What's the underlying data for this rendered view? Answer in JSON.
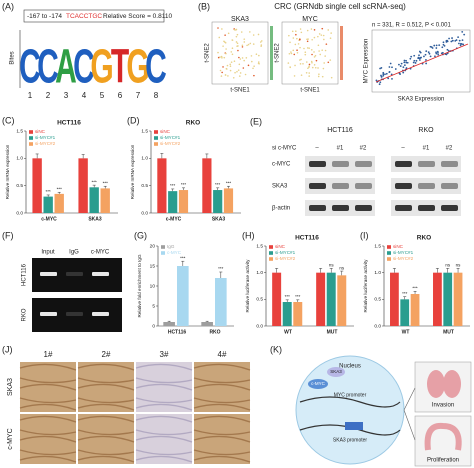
{
  "panel_a": {
    "label": "(A)",
    "site": "-167 to -174",
    "sequence": "TCACCTGC",
    "score": "Relative Score = 0.8110",
    "y_label": "Bites",
    "logo": [
      "C",
      "C",
      "A",
      "C",
      "G",
      "T",
      "G",
      "C"
    ],
    "logo_colors": [
      "#1f5fbf",
      "#1f5fbf",
      "#2e9e44",
      "#1f5fbf",
      "#f0a020",
      "#d62728",
      "#f0a020",
      "#1f5fbf"
    ],
    "positions": [
      1,
      2,
      3,
      4,
      5,
      6,
      7,
      8
    ]
  },
  "panel_b": {
    "label": "(B)",
    "title": "CRC (GRNdb single cell scRNA-seq)",
    "maps": [
      "SKA3",
      "MYC"
    ],
    "x_label": "t-SNE1",
    "y_label": "t-SNE2",
    "stats": "n = 331, R = 0.512, P < 0.001",
    "scatter_x_label": "SKA3 Expression",
    "scatter_y_label": "MYC Expression"
  },
  "panel_c": {
    "label": "(C)",
    "type": "bar",
    "title": "HCT116",
    "y_label": "Relative mRNA expression",
    "categories": [
      "c-MYC",
      "SKA3"
    ],
    "series": [
      {
        "name": "siNC",
        "color": "#e8413c",
        "values": [
          1.0,
          1.0
        ],
        "errors": [
          0.08,
          0.07
        ]
      },
      {
        "name": "si-MYC#1",
        "color": "#2a9d8f",
        "values": [
          0.3,
          0.47
        ],
        "errors": [
          0.03,
          0.04
        ],
        "significance": [
          "***",
          "***"
        ]
      },
      {
        "name": "si-MYC#2",
        "color": "#f4a261",
        "values": [
          0.35,
          0.45
        ],
        "errors": [
          0.03,
          0.04
        ],
        "significance": [
          "***",
          "***"
        ]
      }
    ],
    "ylim": [
      0,
      1.5
    ],
    "yticks": [
      {
        "value": 0,
        "label": "0.0"
      },
      0.5,
      {
        "value": 1,
        "label": "1.0"
      },
      1.5
    ]
  },
  "panel_d": {
    "label": "(D)",
    "type": "bar",
    "title": "RKO",
    "y_label": "Relative mRNA expression",
    "categories": [
      "c-MYC",
      "SKA3"
    ],
    "series": [
      {
        "name": "siNC",
        "color": "#e8413c",
        "values": [
          1.0,
          1.0
        ],
        "errors": [
          0.09,
          0.08
        ]
      },
      {
        "name": "si-MYC#1",
        "color": "#2a9d8f",
        "values": [
          0.4,
          0.42
        ],
        "errors": [
          0.04,
          0.04
        ],
        "significance": [
          "***",
          "***"
        ]
      },
      {
        "name": "si-MYC#2",
        "color": "#f4a261",
        "values": [
          0.42,
          0.45
        ],
        "errors": [
          0.04,
          0.04
        ],
        "significance": [
          "***",
          "***"
        ]
      }
    ],
    "ylim": [
      0,
      1.5
    ],
    "yticks": [
      {
        "value": 0,
        "label": "0.0"
      },
      0.5,
      {
        "value": 1,
        "label": "1.0"
      },
      1.5
    ]
  },
  "panel_e": {
    "label": "(E)",
    "treatment": "si c-MYC",
    "cell_lines": [
      "HCT116",
      "RKO"
    ],
    "lanes": [
      "–",
      "#1",
      "#2"
    ],
    "proteins": [
      "c-MYC",
      "SKA3",
      "β-actin"
    ]
  },
  "panel_f": {
    "label": "(F)",
    "lanes": [
      "Input",
      "IgG",
      "c-MYC"
    ],
    "cell_lines": [
      "HCT116",
      "RKO"
    ]
  },
  "panel_g": {
    "label": "(G)",
    "type": "bar",
    "y_label": "Relative fold enrichment to IgG",
    "categories": [
      "HCT116",
      "RKO"
    ],
    "series": [
      {
        "name": "IgG",
        "color": "#9e9e9e",
        "values": [
          1,
          1
        ],
        "errors": [
          0.2,
          0.2
        ]
      },
      {
        "name": "c-MYC",
        "color": "#a8d8f0",
        "values": [
          15,
          12
        ],
        "errors": [
          1.2,
          1.5
        ],
        "significance": [
          "***",
          "***"
        ]
      }
    ],
    "ylim": [
      0,
      20
    ],
    "yticks": [
      0,
      5,
      10,
      15,
      20
    ]
  },
  "panel_h": {
    "label": "(H)",
    "type": "bar",
    "title": "HCT116",
    "y_label": "Relative luciferase activity",
    "categories": [
      "WT",
      "MUT"
    ],
    "series": [
      {
        "name": "siNC",
        "color": "#e8413c",
        "values": [
          1.0,
          1.0
        ],
        "errors": [
          0.08,
          0.08
        ]
      },
      {
        "name": "si-MYC#1",
        "color": "#2a9d8f",
        "values": [
          0.45,
          1.0
        ],
        "errors": [
          0.04,
          0.08
        ],
        "significance": [
          "***",
          "ns"
        ]
      },
      {
        "name": "si-MYC#2",
        "color": "#f4a261",
        "values": [
          0.45,
          0.95
        ],
        "errors": [
          0.04,
          0.08
        ],
        "significance": [
          "***",
          "ns"
        ]
      }
    ],
    "ylim": [
      0,
      1.5
    ],
    "yticks": [
      {
        "value": 0,
        "label": "0.0"
      },
      0.5,
      {
        "value": 1,
        "label": "1.0"
      },
      1.5
    ]
  },
  "panel_i": {
    "label": "(I)",
    "type": "bar",
    "title": "RKO",
    "y_label": "Relative luciferase activity",
    "categories": [
      "WT",
      "MUT"
    ],
    "series": [
      {
        "name": "siNC",
        "color": "#e8413c",
        "values": [
          1.0,
          1.0
        ],
        "errors": [
          0.08,
          0.08
        ]
      },
      {
        "name": "si-MYC#1",
        "color": "#2a9d8f",
        "values": [
          0.5,
          1.0
        ],
        "errors": [
          0.05,
          0.08
        ],
        "significance": [
          "***",
          "ns"
        ]
      },
      {
        "name": "si-MYC#2",
        "color": "#f4a261",
        "values": [
          0.6,
          1.0
        ],
        "errors": [
          0.05,
          0.08
        ],
        "significance": [
          "***",
          "ns"
        ]
      }
    ],
    "ylim": [
      0,
      1.5
    ],
    "yticks": [
      {
        "value": 0,
        "label": "0.0"
      },
      0.5,
      {
        "value": 1,
        "label": "1.0"
      },
      1.5
    ]
  },
  "panel_j": {
    "label": "(J)",
    "cases": [
      "1#",
      "2#",
      "3#",
      "4#"
    ],
    "stains": [
      "SKA3",
      "c-MYC"
    ]
  },
  "panel_k": {
    "label": "(K)",
    "nucleus": "Nucleus",
    "myc_promoter": "MYC promoter",
    "ska3_promoter": "SKA3 promoter",
    "ska3": "SKA3",
    "myc": "c-MYC",
    "invasion": "Invasion",
    "proliferation": "Proliferation"
  }
}
